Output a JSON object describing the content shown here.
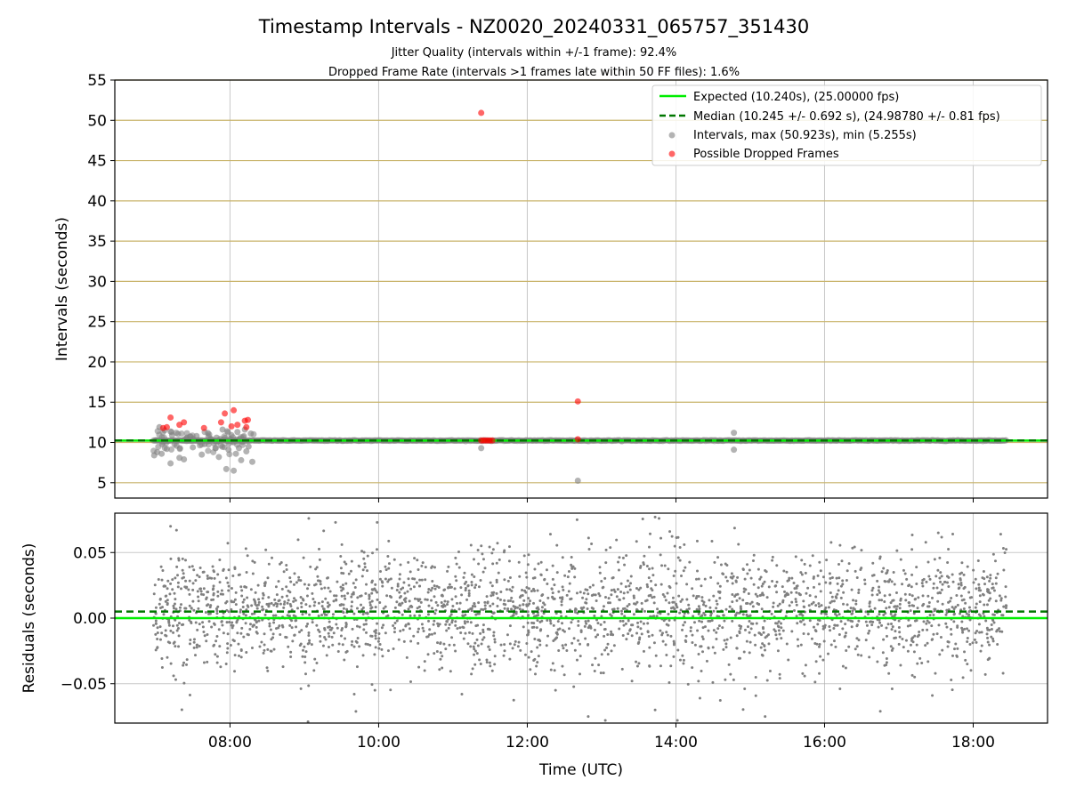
{
  "figure": {
    "title": "Timestamp Intervals - NZ0020_20240331_065757_351430",
    "subtitle_line1": "Jitter Quality (intervals within +/-1 frame): 92.4%",
    "subtitle_line2": "Dropped Frame Rate (intervals >1 frames late within 50 FF files): 1.6%"
  },
  "chart_data": [
    {
      "type": "scatter",
      "panel": "top",
      "ylabel": "Intervals (seconds)",
      "xlim": [
        6.45,
        19.0
      ],
      "ylim": [
        3.1,
        55
      ],
      "yticks": [
        5,
        10,
        15,
        20,
        25,
        30,
        35,
        40,
        45,
        50,
        55
      ],
      "ytick_labels": [
        "5",
        "10",
        "15",
        "20",
        "25",
        "30",
        "35",
        "40",
        "45",
        "50",
        "55"
      ],
      "grid": "on",
      "legend_position": "top-right",
      "lines": [
        {
          "name": "Expected (10.240s), (25.00000 fps)",
          "y": 10.24,
          "color": "#00ee00",
          "style": "solid"
        },
        {
          "name": "Median (10.245 +/- 0.692 s), (24.98780 +/- 0.81 fps)",
          "y": 10.245,
          "color": "#007700",
          "style": "dashed"
        }
      ],
      "series": [
        {
          "name": "Intervals, max (50.923s), min (5.255s)",
          "color": "#808080",
          "x_range": [
            6.97,
            18.45
          ],
          "baseline_y": 10.24,
          "points": [
            [
              6.98,
              8.4
            ],
            [
              7.02,
              8.8
            ],
            [
              7.05,
              11.9
            ],
            [
              7.08,
              8.6
            ],
            [
              7.12,
              11.5
            ],
            [
              7.15,
              9.2
            ],
            [
              7.2,
              7.4
            ],
            [
              7.22,
              10.9
            ],
            [
              7.28,
              9.6
            ],
            [
              7.32,
              8.1
            ],
            [
              7.38,
              7.9
            ],
            [
              7.42,
              10.5
            ],
            [
              7.5,
              9.4
            ],
            [
              7.55,
              10.8
            ],
            [
              7.62,
              8.5
            ],
            [
              7.66,
              9.8
            ],
            [
              7.72,
              11.0
            ],
            [
              7.78,
              9.9
            ],
            [
              7.82,
              10.6
            ],
            [
              7.85,
              8.2
            ],
            [
              7.9,
              11.6
            ],
            [
              7.95,
              6.7
            ],
            [
              7.98,
              9.1
            ],
            [
              8.02,
              10.9
            ],
            [
              8.05,
              6.5
            ],
            [
              8.08,
              8.6
            ],
            [
              8.1,
              11.3
            ],
            [
              8.12,
              9.3
            ],
            [
              8.15,
              7.8
            ],
            [
              8.18,
              10.3
            ],
            [
              8.2,
              11.6
            ],
            [
              8.22,
              8.9
            ],
            [
              8.25,
              9.5
            ],
            [
              8.28,
              11.1
            ],
            [
              8.3,
              7.6
            ],
            [
              11.38,
              9.3
            ],
            [
              12.68,
              5.255
            ],
            [
              14.78,
              11.2
            ],
            [
              14.78,
              9.1
            ]
          ]
        },
        {
          "name": "Possible Dropped Frames",
          "color": "#ff0000",
          "points": [
            [
              7.1,
              11.8
            ],
            [
              7.15,
              11.9
            ],
            [
              7.2,
              13.1
            ],
            [
              7.32,
              12.2
            ],
            [
              7.38,
              12.5
            ],
            [
              7.65,
              11.8
            ],
            [
              7.88,
              12.5
            ],
            [
              7.93,
              13.6
            ],
            [
              8.02,
              12.0
            ],
            [
              8.05,
              14.0
            ],
            [
              8.1,
              12.2
            ],
            [
              8.2,
              12.7
            ],
            [
              8.24,
              12.8
            ],
            [
              8.22,
              11.9
            ],
            [
              11.38,
              50.923
            ],
            [
              12.68,
              15.1
            ],
            [
              12.68,
              10.4
            ],
            [
              11.38,
              10.25
            ],
            [
              11.41,
              10.25
            ],
            [
              11.44,
              10.25
            ],
            [
              11.47,
              10.25
            ],
            [
              11.5,
              10.25
            ],
            [
              11.53,
              10.25
            ]
          ]
        }
      ]
    },
    {
      "type": "scatter",
      "panel": "bottom",
      "xlabel": "Time (UTC)",
      "ylabel": "Residuals (seconds)",
      "xlim": [
        6.45,
        19.0
      ],
      "ylim": [
        -0.08,
        0.08
      ],
      "xticks": [
        8,
        10,
        12,
        14,
        16,
        18
      ],
      "xtick_labels": [
        "08:00",
        "10:00",
        "12:00",
        "14:00",
        "16:00",
        "18:00"
      ],
      "yticks": [
        0.05,
        0.0,
        -0.05
      ],
      "ytick_labels": [
        "0.05",
        "0.00",
        "−0.05"
      ],
      "grid": "on",
      "lines": [
        {
          "name": "Expected",
          "y": 0.0,
          "color": "#00ee00",
          "style": "solid"
        },
        {
          "name": "Median",
          "y": 0.005,
          "color": "#007700",
          "style": "dashed"
        }
      ],
      "series": [
        {
          "name": "Residuals",
          "color": "#808080",
          "x_range": [
            6.97,
            18.45
          ],
          "y_center": 0.005,
          "y_spread": 0.03,
          "count": 2600,
          "outliers": [
            [
              7.2,
              0.07
            ],
            [
              7.28,
              0.067
            ],
            [
              9.05,
              -0.079
            ],
            [
              9.42,
              0.073
            ],
            [
              9.98,
              0.073
            ],
            [
              9.95,
              -0.055
            ],
            [
              11.12,
              -0.058
            ],
            [
              12.38,
              -0.055
            ],
            [
              12.67,
              0.075
            ],
            [
              12.82,
              -0.075
            ],
            [
              13.05,
              -0.078
            ],
            [
              13.72,
              0.077
            ],
            [
              13.72,
              -0.07
            ],
            [
              14.02,
              -0.078
            ],
            [
              15.2,
              -0.075
            ],
            [
              16.75,
              -0.071
            ],
            [
              17.45,
              -0.059
            ],
            [
              17.53,
              0.065
            ],
            [
              18.37,
              0.064
            ]
          ]
        }
      ]
    }
  ],
  "colors": {
    "axes_edge": "#000000",
    "grid": "#b0b0b0",
    "hline": "#c9b46b",
    "expected": "#00ee00",
    "median": "#007700",
    "interval_point": "#808080",
    "dropped_point": "#ff0000"
  }
}
